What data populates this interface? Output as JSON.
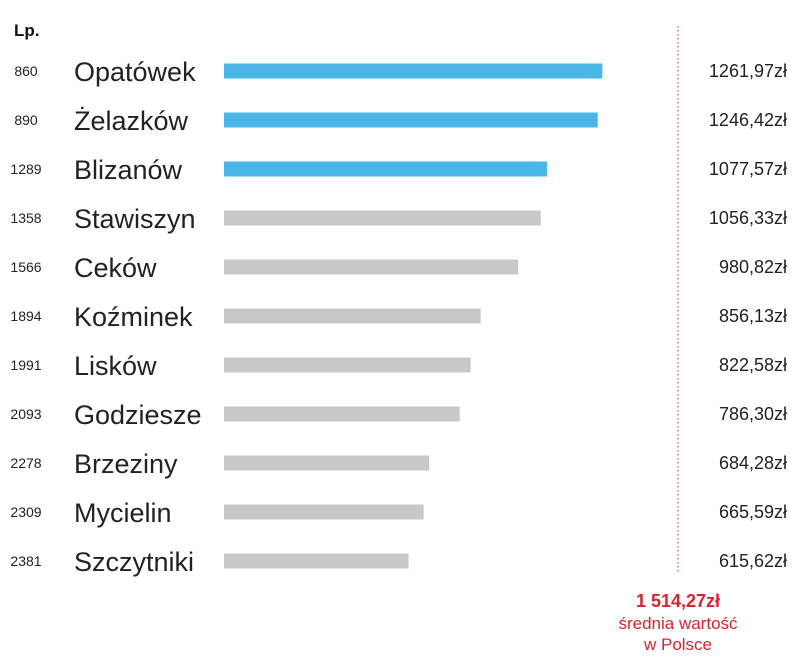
{
  "chart_data": {
    "type": "bar",
    "orientation": "horizontal",
    "rank_header": "Lp.",
    "rows": [
      {
        "rank": "860",
        "name": "Opatówek",
        "value": 1261.97,
        "label": "1261,97zł",
        "highlight": true
      },
      {
        "rank": "890",
        "name": "Żelazków",
        "value": 1246.42,
        "label": "1246,42zł",
        "highlight": true
      },
      {
        "rank": "1289",
        "name": "Blizanów",
        "value": 1077.57,
        "label": "1077,57zł",
        "highlight": true
      },
      {
        "rank": "1358",
        "name": "Stawiszyn",
        "value": 1056.33,
        "label": "1056,33zł",
        "highlight": false
      },
      {
        "rank": "1566",
        "name": "Ceków",
        "value": 980.82,
        "label": "980,82zł",
        "highlight": false
      },
      {
        "rank": "1894",
        "name": "Koźminek",
        "value": 856.13,
        "label": "856,13zł",
        "highlight": false
      },
      {
        "rank": "1991",
        "name": "Lisków",
        "value": 822.58,
        "label": "822,58zł",
        "highlight": false
      },
      {
        "rank": "2093",
        "name": "Godziesze",
        "value": 786.3,
        "label": "786,30zł",
        "highlight": false
      },
      {
        "rank": "2278",
        "name": "Brzeziny",
        "value": 684.28,
        "label": "684,28zł",
        "highlight": false
      },
      {
        "rank": "2309",
        "name": "Mycielin",
        "value": 665.59,
        "label": "665,59zł",
        "highlight": false
      },
      {
        "rank": "2381",
        "name": "Szczytniki",
        "value": 615.62,
        "label": "615,62zł",
        "highlight": false
      }
    ],
    "reference": {
      "value": 1514.27,
      "label": "1 514,27zł",
      "caption_line1": "średnia wartość",
      "caption_line2": "w Polsce"
    },
    "xlim": [
      0,
      1514.27
    ],
    "colors": {
      "highlight": "#4ab7e8",
      "default": "#c8c8c8",
      "reference": "#d9232e"
    }
  }
}
